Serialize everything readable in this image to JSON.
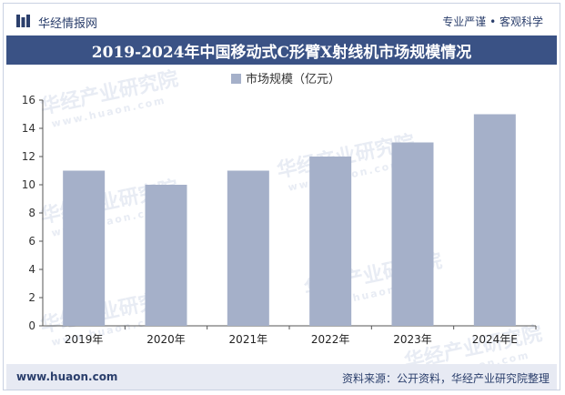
{
  "header": {
    "brand": "华经情报网",
    "tagline": "专业严谨 • 客观科学",
    "title": "2019-2024年中国移动式C形臂X射线机市场规模情况"
  },
  "footer": {
    "site": "www.huaon.com",
    "source": "资料来源：公开资料，华经产业研究院整理"
  },
  "watermark": {
    "text": "华经产业研究院",
    "sub": "www.huaon.com"
  },
  "colors": {
    "title_bg": "#3a5285",
    "bar": "#a5b0c9",
    "text_dark": "#2b3f6c"
  },
  "chart_data": {
    "type": "bar",
    "title": "2019-2024年中国移动式C形臂X射线机市场规模情况",
    "categories": [
      "2019年",
      "2020年",
      "2021年",
      "2022年",
      "2023年",
      "2024年E"
    ],
    "series": [
      {
        "name": "市场规模（亿元）",
        "values": [
          11,
          10,
          11,
          12,
          13,
          15
        ]
      }
    ],
    "xlabel": "",
    "ylabel": "",
    "ylim": [
      0,
      16
    ],
    "yticks": [
      0,
      2,
      4,
      6,
      8,
      10,
      12,
      14,
      16
    ],
    "grid": false,
    "legend": "top-center"
  }
}
